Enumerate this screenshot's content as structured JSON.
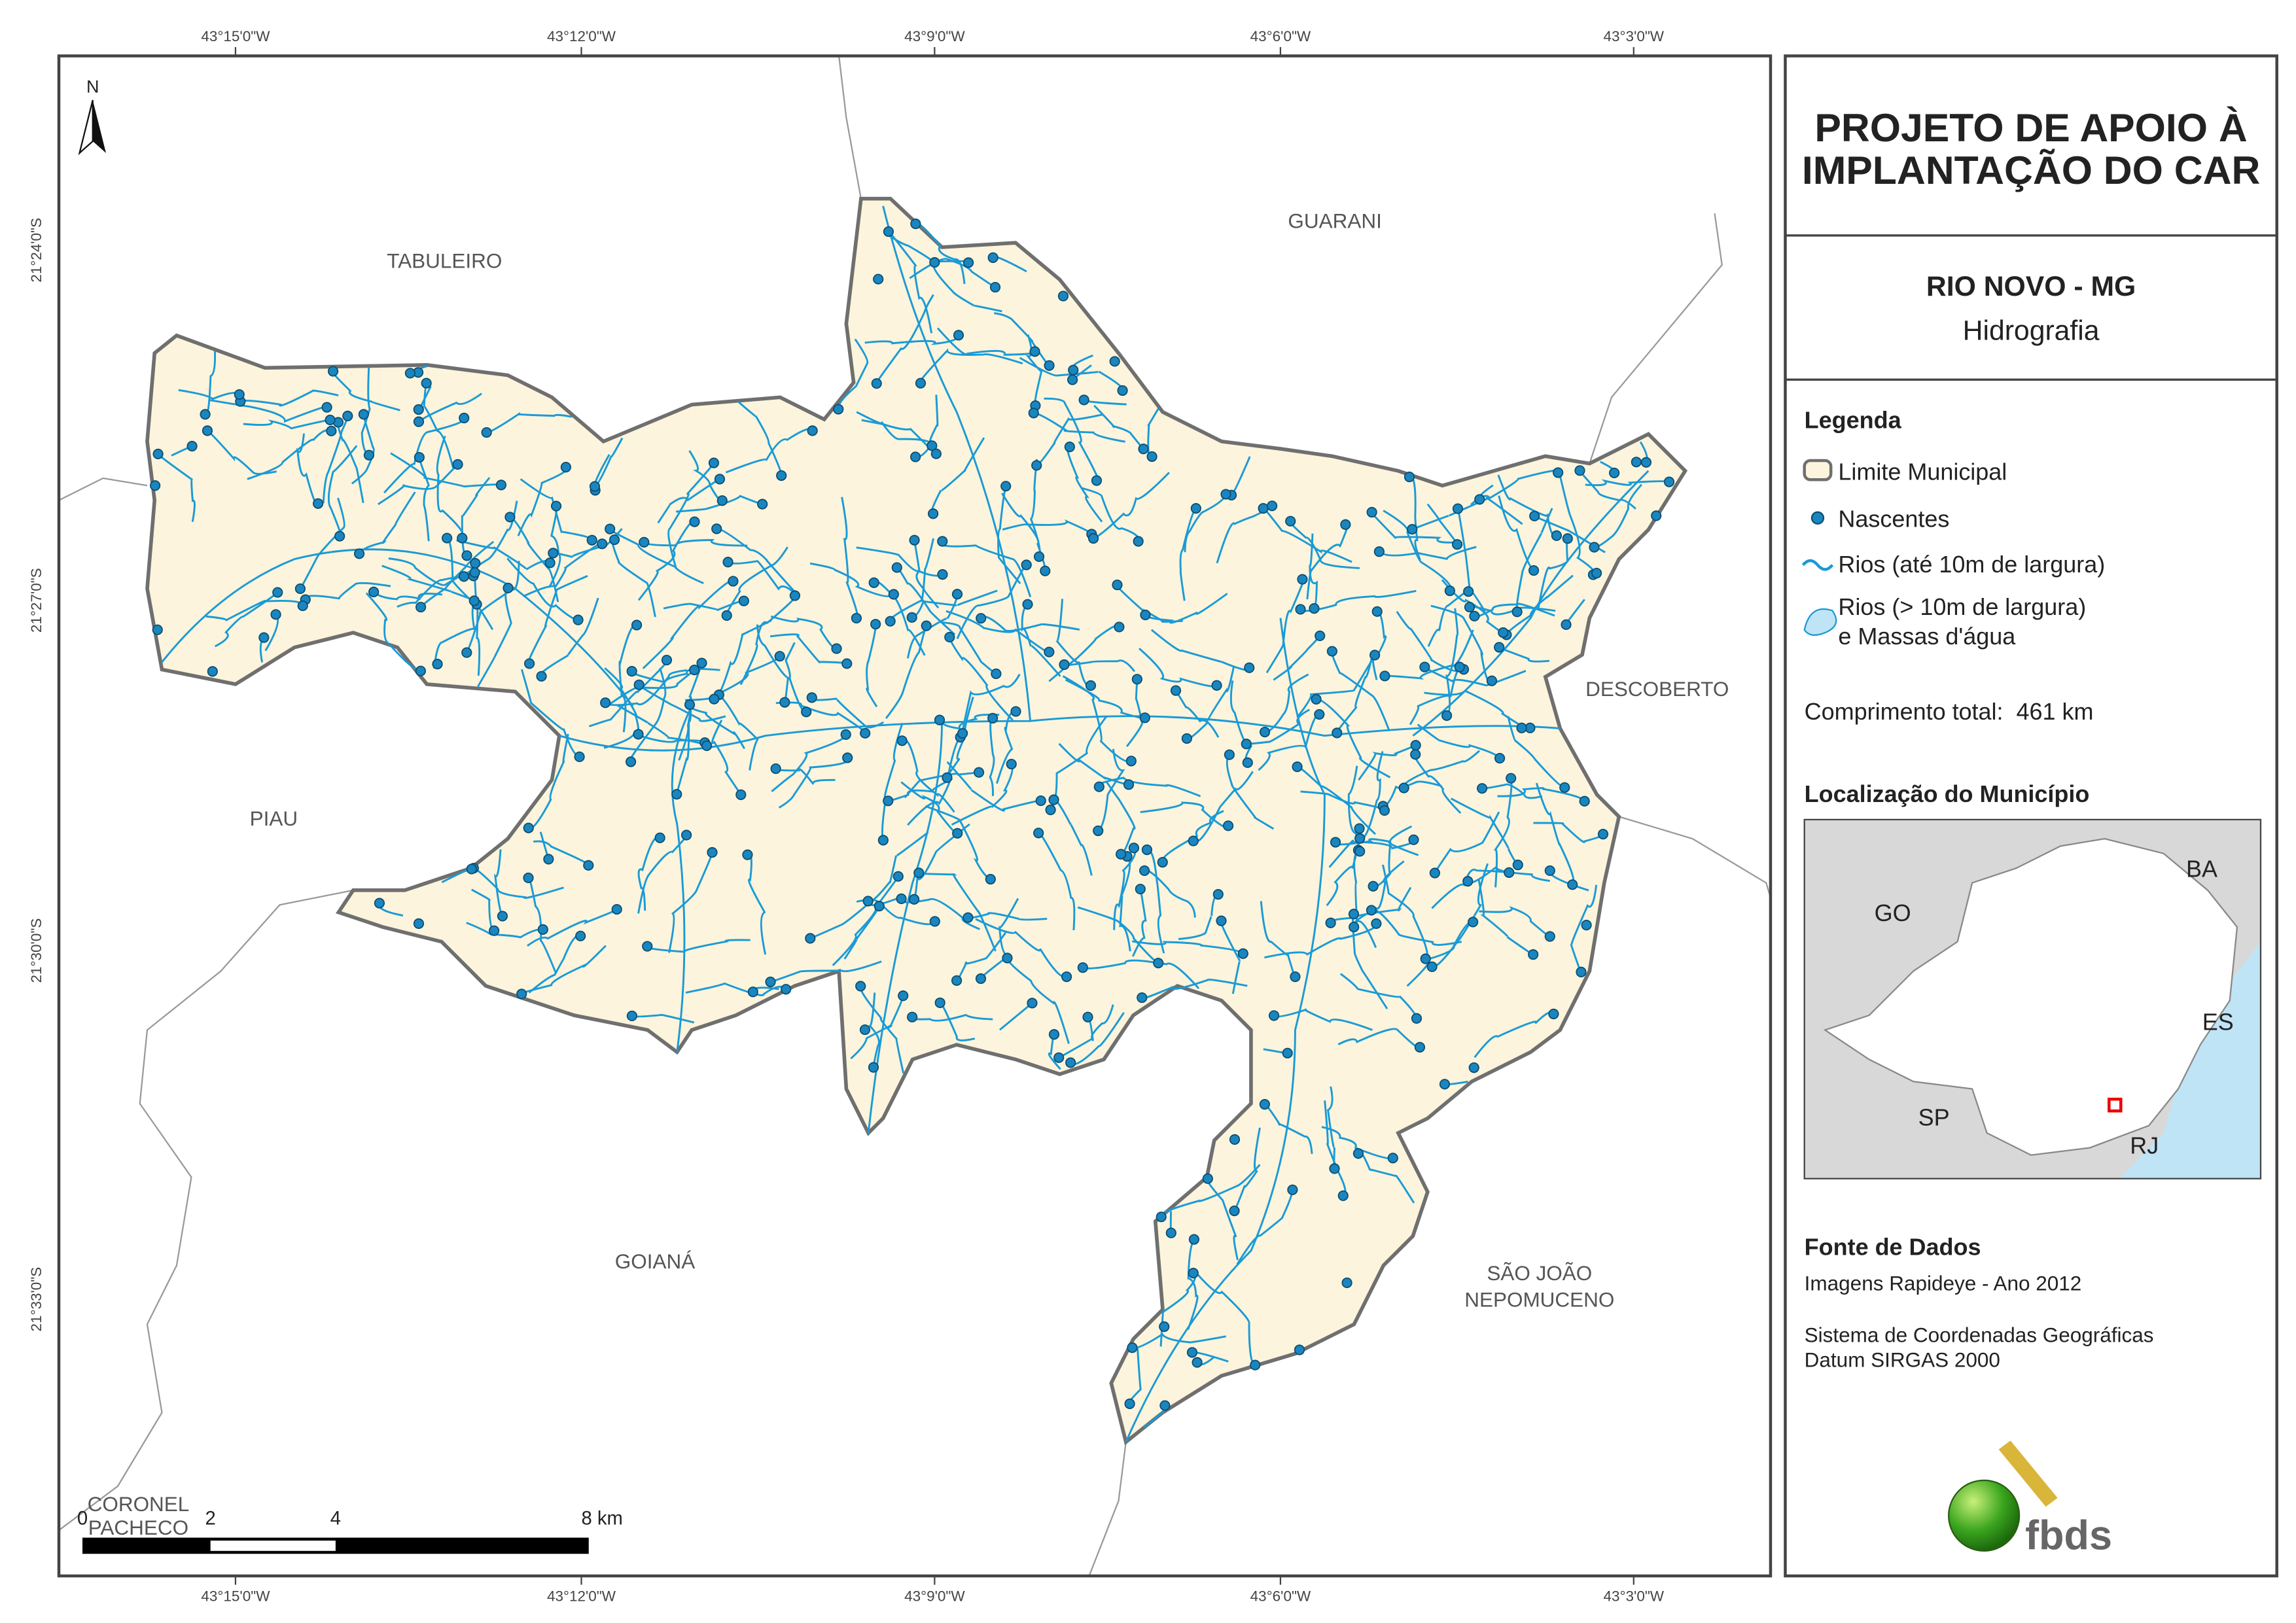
{
  "map": {
    "lon_labels_top": [
      "43°15'0\"W",
      "43°12'0\"W",
      "43°9'0\"W",
      "43°6'0\"W",
      "43°3'0\"W"
    ],
    "lon_labels_bottom": [
      "43°15'0\"W",
      "43°12'0\"W",
      "43°9'0\"W",
      "43°6'0\"W",
      "43°3'0\"W"
    ],
    "lat_labels": [
      "21°24'0\"S",
      "21°27'0\"S",
      "21°30'0\"S",
      "21°33'0\"S"
    ],
    "neighbors": [
      "TABULEIRO",
      "GUARANI",
      "DESCOBERTO",
      "PIAU",
      "GOIANÁ",
      "SÃO JOÃO",
      "NEPOMUCENO",
      "CORONEL",
      "PACHECO"
    ],
    "north": "N",
    "scale_labels": [
      "0",
      "2",
      "4",
      "8 km"
    ]
  },
  "panel": {
    "title": [
      "PROJETO DE APOIO À",
      "IMPLANTAÇÃO DO CAR"
    ],
    "municipality": "RIO NOVO - MG",
    "theme": "Hidrografia",
    "legend": {
      "title": "Legenda",
      "items": [
        "Limite Municipal",
        "Nascentes",
        "Rios (até 10m de largura)",
        "Rios (> 10m de largura)",
        "e Massas d'água"
      ]
    },
    "total_length": "Comprimento total:  461 km",
    "location": {
      "title": "Localização do Município",
      "labels": [
        "BA",
        "GO",
        "ES",
        "SP",
        "RJ"
      ]
    },
    "source": {
      "title": "Fonte de Dados",
      "lines": [
        "Imagens Rapideye - Ano 2012",
        "Sistema de Coordenadas Geográficas",
        "Datum SIRGAS 2000"
      ]
    },
    "logo": "fbds"
  }
}
